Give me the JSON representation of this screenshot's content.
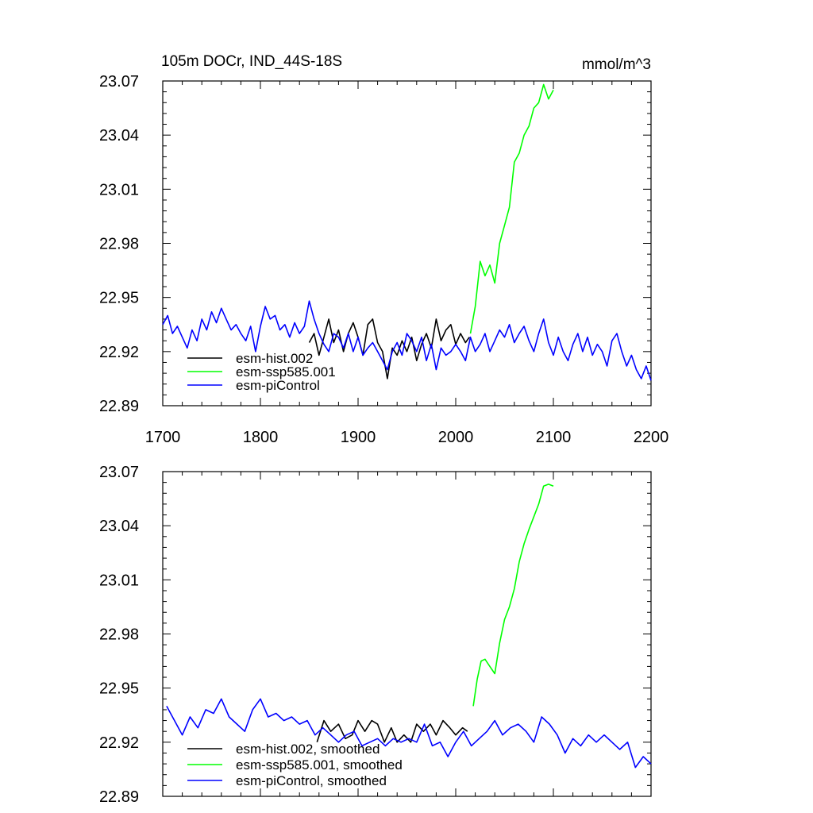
{
  "chart_data": [
    {
      "type": "line",
      "title_left": "105m DOCr, IND_44S-18S",
      "title_right": "mmol/m^3",
      "xlim": [
        1700,
        2200
      ],
      "ylim": [
        22.89,
        23.07
      ],
      "xticks": [
        "1700",
        "1800",
        "1900",
        "2000",
        "2100",
        "2200"
      ],
      "yticks": [
        "22.89",
        "22.92",
        "22.95",
        "22.98",
        "23.01",
        "23.04",
        "23.07"
      ],
      "grid": false,
      "legend_position": "bottom-left",
      "series": [
        {
          "name": "esm-hist.002",
          "color": "#000000",
          "x": [
            1850,
            1855,
            1860,
            1865,
            1870,
            1875,
            1880,
            1885,
            1890,
            1895,
            1900,
            1905,
            1910,
            1915,
            1920,
            1925,
            1930,
            1935,
            1940,
            1945,
            1950,
            1955,
            1960,
            1965,
            1970,
            1975,
            1980,
            1985,
            1990,
            1995,
            2000,
            2005,
            2010,
            2014
          ],
          "y": [
            22.925,
            22.93,
            22.918,
            22.928,
            22.938,
            22.925,
            22.932,
            22.92,
            22.93,
            22.936,
            22.928,
            22.918,
            22.935,
            22.938,
            22.925,
            22.92,
            22.905,
            22.922,
            22.918,
            22.926,
            22.92,
            22.928,
            22.915,
            22.924,
            22.93,
            22.922,
            22.938,
            22.926,
            22.932,
            22.935,
            22.924,
            22.93,
            22.925,
            22.928
          ]
        },
        {
          "name": "esm-ssp585.001",
          "color": "#00ff00",
          "x": [
            2015,
            2020,
            2025,
            2030,
            2035,
            2040,
            2045,
            2050,
            2055,
            2060,
            2065,
            2070,
            2075,
            2080,
            2085,
            2090,
            2095,
            2100
          ],
          "y": [
            22.93,
            22.945,
            22.97,
            22.962,
            22.968,
            22.958,
            22.98,
            22.99,
            23.0,
            23.025,
            23.03,
            23.04,
            23.045,
            23.055,
            23.058,
            23.068,
            23.06,
            23.065
          ]
        },
        {
          "name": "esm-piControl",
          "color": "#0000ff",
          "x": [
            1700,
            1705,
            1710,
            1715,
            1720,
            1725,
            1730,
            1735,
            1740,
            1745,
            1750,
            1755,
            1760,
            1765,
            1770,
            1775,
            1780,
            1785,
            1790,
            1795,
            1800,
            1805,
            1810,
            1815,
            1820,
            1825,
            1830,
            1835,
            1840,
            1845,
            1850,
            1855,
            1860,
            1865,
            1870,
            1875,
            1880,
            1885,
            1890,
            1895,
            1900,
            1905,
            1910,
            1915,
            1920,
            1925,
            1930,
            1935,
            1940,
            1945,
            1950,
            1955,
            1960,
            1965,
            1970,
            1975,
            1980,
            1985,
            1990,
            1995,
            2000,
            2005,
            2010,
            2015,
            2020,
            2025,
            2030,
            2035,
            2040,
            2045,
            2050,
            2055,
            2060,
            2065,
            2070,
            2075,
            2080,
            2085,
            2090,
            2095,
            2100,
            2105,
            2110,
            2115,
            2120,
            2125,
            2130,
            2135,
            2140,
            2145,
            2150,
            2155,
            2160,
            2165,
            2170,
            2175,
            2180,
            2185,
            2190,
            2195,
            2200
          ],
          "y": [
            22.935,
            22.94,
            22.93,
            22.934,
            22.928,
            22.922,
            22.932,
            22.926,
            22.938,
            22.932,
            22.942,
            22.936,
            22.944,
            22.938,
            22.932,
            22.935,
            22.93,
            22.926,
            22.934,
            22.92,
            22.934,
            22.945,
            22.938,
            22.94,
            22.932,
            22.935,
            22.928,
            22.936,
            22.93,
            22.934,
            22.948,
            22.938,
            22.93,
            22.924,
            22.92,
            22.93,
            22.928,
            22.922,
            22.93,
            22.92,
            22.928,
            22.918,
            22.922,
            22.925,
            22.92,
            22.915,
            22.91,
            22.92,
            22.925,
            22.918,
            22.93,
            22.926,
            22.92,
            22.928,
            22.915,
            22.924,
            22.91,
            22.922,
            22.918,
            22.92,
            22.924,
            22.92,
            22.915,
            22.928,
            22.92,
            22.924,
            22.93,
            22.92,
            22.926,
            22.932,
            22.928,
            22.935,
            22.925,
            22.93,
            22.934,
            22.926,
            22.92,
            22.93,
            22.938,
            22.925,
            22.918,
            22.928,
            22.92,
            22.915,
            22.924,
            22.93,
            22.92,
            22.928,
            22.918,
            22.924,
            22.92,
            22.912,
            22.926,
            22.93,
            22.92,
            22.912,
            22.918,
            22.91,
            22.905,
            22.912,
            22.904
          ]
        }
      ]
    },
    {
      "type": "line",
      "xlim": [
        1700,
        2200
      ],
      "ylim": [
        22.89,
        23.07
      ],
      "yticks": [
        "22.89",
        "22.92",
        "22.95",
        "22.98",
        "23.01",
        "23.04",
        "23.07"
      ],
      "grid": false,
      "legend_position": "bottom-left",
      "series": [
        {
          "name": "esm-hist.002, smoothed",
          "color": "#000000",
          "x": [
            1858,
            1865,
            1872,
            1880,
            1887,
            1894,
            1900,
            1907,
            1914,
            1920,
            1927,
            1934,
            1940,
            1947,
            1954,
            1960,
            1967,
            1974,
            1980,
            1987,
            1994,
            2000,
            2007,
            2012
          ],
          "y": [
            22.92,
            22.932,
            22.926,
            22.93,
            22.922,
            22.924,
            22.932,
            22.926,
            22.932,
            22.93,
            22.92,
            22.928,
            22.92,
            22.924,
            22.92,
            22.93,
            22.926,
            22.93,
            22.924,
            22.932,
            22.928,
            22.924,
            22.928,
            22.926
          ]
        },
        {
          "name": "esm-ssp585.001, smoothed",
          "color": "#00ff00",
          "x": [
            2018,
            2022,
            2026,
            2030,
            2035,
            2040,
            2045,
            2050,
            2055,
            2060,
            2065,
            2070,
            2075,
            2080,
            2085,
            2090,
            2095,
            2100
          ],
          "y": [
            22.94,
            22.955,
            22.965,
            22.966,
            22.962,
            22.958,
            22.975,
            22.988,
            22.995,
            23.005,
            23.02,
            23.03,
            23.038,
            23.045,
            23.052,
            23.062,
            23.063,
            23.062
          ]
        },
        {
          "name": "esm-piControl, smoothed",
          "color": "#0000ff",
          "x": [
            1704,
            1712,
            1720,
            1728,
            1736,
            1744,
            1752,
            1760,
            1768,
            1776,
            1784,
            1792,
            1800,
            1808,
            1816,
            1824,
            1832,
            1840,
            1848,
            1856,
            1864,
            1872,
            1880,
            1888,
            1896,
            1904,
            1912,
            1920,
            1928,
            1936,
            1944,
            1952,
            1960,
            1968,
            1976,
            1984,
            1992,
            2000,
            2008,
            2016,
            2024,
            2032,
            2040,
            2048,
            2056,
            2064,
            2072,
            2080,
            2088,
            2096,
            2104,
            2112,
            2120,
            2128,
            2136,
            2144,
            2152,
            2160,
            2168,
            2176,
            2184,
            2192,
            2200
          ],
          "y": [
            22.94,
            22.932,
            22.924,
            22.934,
            22.928,
            22.938,
            22.936,
            22.944,
            22.934,
            22.93,
            22.926,
            22.938,
            22.944,
            22.934,
            22.936,
            22.932,
            22.934,
            22.93,
            22.932,
            22.924,
            22.928,
            22.924,
            22.92,
            22.924,
            22.926,
            22.918,
            22.92,
            22.922,
            22.918,
            22.922,
            22.92,
            22.922,
            22.92,
            22.93,
            22.918,
            22.92,
            22.912,
            22.92,
            22.926,
            22.918,
            22.922,
            22.926,
            22.932,
            22.924,
            22.928,
            22.93,
            22.926,
            22.92,
            22.934,
            22.93,
            22.924,
            22.914,
            22.922,
            22.918,
            22.924,
            22.92,
            22.924,
            22.92,
            22.916,
            22.92,
            22.906,
            22.912,
            22.908
          ]
        }
      ]
    }
  ]
}
